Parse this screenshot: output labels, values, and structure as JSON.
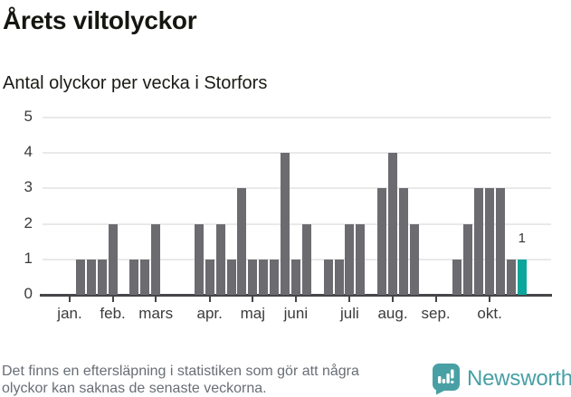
{
  "header": {
    "title": "Årets viltolyckor",
    "subtitle": "Antal olyckor per vecka i Storfors"
  },
  "chart_data": {
    "type": "bar",
    "title": "Årets viltolyckor",
    "subtitle": "Antal olyckor per vecka i Storfors",
    "xlabel": "",
    "ylabel": "",
    "x_unit": "vecka (ISO week 1–43, jan.–okt.)",
    "ylim": [
      0,
      5
    ],
    "grid": true,
    "y_ticks": [
      0,
      1,
      2,
      3,
      4,
      5
    ],
    "weeks_start": 1,
    "values": [
      0,
      1,
      1,
      1,
      2,
      0,
      1,
      1,
      2,
      0,
      0,
      0,
      2,
      1,
      2,
      1,
      3,
      1,
      1,
      1,
      4,
      1,
      2,
      0,
      1,
      1,
      2,
      2,
      0,
      3,
      4,
      3,
      2,
      0,
      0,
      0,
      1,
      2,
      3,
      3,
      3,
      1,
      1
    ],
    "month_ticks": [
      {
        "label": "jan.",
        "week": 1
      },
      {
        "label": "feb.",
        "week": 5
      },
      {
        "label": "mars",
        "week": 9
      },
      {
        "label": "apr.",
        "week": 14
      },
      {
        "label": "maj",
        "week": 18
      },
      {
        "label": "juni",
        "week": 22
      },
      {
        "label": "juli",
        "week": 27
      },
      {
        "label": "aug.",
        "week": 31
      },
      {
        "label": "sep.",
        "week": 35
      },
      {
        "label": "okt.",
        "week": 40
      }
    ],
    "highlight_week": 43,
    "highlight_value_label": "1",
    "colors": {
      "bar": "#6b6b70",
      "highlight": "#0ba69c",
      "gridline": "#e9e9e9",
      "axis": "#45454a",
      "brand_teal": "#48a0a5"
    }
  },
  "footer": {
    "note_lines": [
      "Det finns en eftersläpning i statistiken som gör att några",
      "olyckor kan saknas de senaste veckorna."
    ],
    "logo_text": "Newsworthy"
  }
}
